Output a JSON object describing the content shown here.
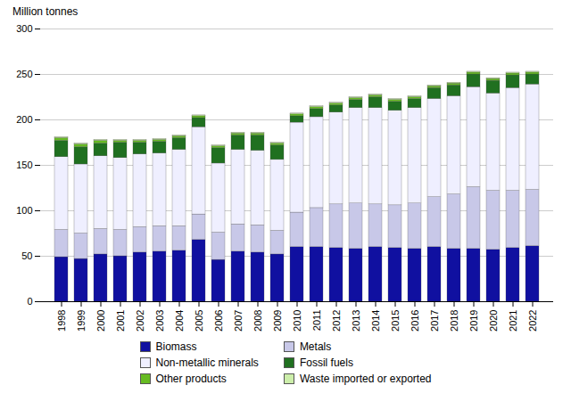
{
  "chart_data": {
    "type": "bar",
    "stacked": true,
    "grid": true,
    "legend": "bottom",
    "ylabel": "Million tonnes",
    "categories": [
      "1998",
      "1999",
      "2000",
      "2001",
      "2002",
      "2003",
      "2004",
      "2005",
      "2006",
      "2007",
      "2008",
      "2009",
      "2010",
      "2011",
      "2012",
      "2013",
      "2014",
      "2015",
      "2016",
      "2017",
      "2018",
      "2019",
      "2020",
      "2021",
      "2022"
    ],
    "series": [
      {
        "name": "Biomass",
        "color": "#1010a0",
        "values": [
          49,
          47,
          52,
          50,
          54,
          55,
          56,
          68,
          46,
          55,
          54,
          52,
          60,
          60,
          59,
          58,
          60,
          59,
          58,
          60,
          58,
          58,
          57,
          59,
          61
        ]
      },
      {
        "name": "Metals",
        "color": "#c8c8e8",
        "values": [
          30,
          28,
          28,
          29,
          28,
          28,
          27,
          28,
          30,
          30,
          30,
          26,
          38,
          43,
          48,
          50,
          47,
          47,
          50,
          55,
          60,
          68,
          65,
          63,
          62
        ]
      },
      {
        "name": "Non-metallic minerals",
        "color": "#efefff",
        "values": [
          80,
          76,
          80,
          79,
          80,
          80,
          84,
          96,
          76,
          82,
          82,
          78,
          99,
          100,
          101,
          105,
          106,
          104,
          105,
          108,
          108,
          110,
          107,
          113,
          116
        ]
      },
      {
        "name": "Fossil fuels",
        "color": "#207020",
        "values": [
          18,
          19,
          14,
          17,
          13,
          13,
          13,
          10,
          17,
          16,
          17,
          16,
          7,
          9,
          8,
          9,
          12,
          10,
          10,
          12,
          12,
          14,
          14,
          14,
          11
        ]
      },
      {
        "name": "Other products",
        "color": "#66bb22",
        "values": [
          3,
          3,
          3,
          2,
          2,
          2,
          2,
          2,
          2,
          2,
          2,
          2,
          2,
          2,
          2,
          2,
          2,
          2,
          2,
          2,
          2,
          2,
          2,
          2,
          2
        ]
      },
      {
        "name": "Waste imported or exported",
        "color": "#cceeaa",
        "values": [
          1,
          1,
          1,
          1,
          1,
          1,
          1,
          1,
          1,
          1,
          1,
          1,
          1,
          1,
          1,
          1,
          1,
          1,
          1,
          1,
          1,
          1,
          1,
          1,
          1
        ]
      }
    ],
    "ylim": [
      0,
      300
    ],
    "yticks": [
      0,
      50,
      100,
      150,
      200,
      250,
      300
    ]
  }
}
